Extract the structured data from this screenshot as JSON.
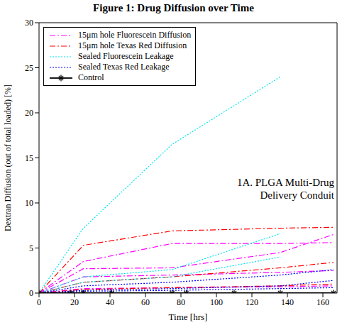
{
  "chart_data": {
    "type": "line",
    "title": "Figure 1: Drug Diffusion over Time",
    "x_label": "Time [hrs]",
    "y_label": "Dextran Diffusion (out of total loaded) [%]",
    "annotation": "1A. PLGA Multi-Drug Delivery Conduit",
    "xlim": [
      0,
      168
    ],
    "xticks": [
      0,
      20,
      40,
      60,
      80,
      100,
      120,
      140,
      160
    ],
    "ylim": [
      0,
      30
    ],
    "yticks": [
      0,
      5,
      10,
      15,
      20,
      25,
      30
    ],
    "grid": false,
    "legend": "upper left",
    "series": [
      {
        "name": "15μm hole Fluorescein Diffusion",
        "color": "#ff00ff",
        "line_style": "dashdot",
        "marker": "none",
        "replicates": [
          {
            "x": [
              0,
              25,
              75,
              136,
              166
            ],
            "values": [
              0,
              3.5,
              5.5,
              5.5,
              5.6
            ]
          },
          {
            "x": [
              0,
              25,
              75,
              136,
              166
            ],
            "values": [
              0,
              2.7,
              2.8,
              4.5,
              6.5
            ]
          },
          {
            "x": [
              0,
              25,
              75,
              136,
              166
            ],
            "values": [
              0,
              1.8,
              2.0,
              2.3,
              2.5
            ]
          },
          {
            "x": [
              0,
              25,
              75,
              136,
              166
            ],
            "values": [
              0,
              0.5,
              0.6,
              0.7,
              0.8
            ]
          }
        ]
      },
      {
        "name": "15μm hole Texas Red Diffusion",
        "color": "#ff0000",
        "line_style": "dashdot",
        "marker": "none",
        "replicates": [
          {
            "x": [
              0,
              25,
              75,
              136,
              166
            ],
            "values": [
              0,
              5.3,
              6.9,
              7.2,
              7.3
            ]
          },
          {
            "x": [
              0,
              25,
              75,
              136,
              166
            ],
            "values": [
              0,
              1.2,
              1.8,
              2.8,
              3.4
            ]
          },
          {
            "x": [
              0,
              25,
              75,
              136,
              166
            ],
            "values": [
              0,
              0.4,
              0.6,
              0.8,
              1.0
            ]
          }
        ]
      },
      {
        "name": "Sealed Fluorescein Leakage",
        "color": "#00e5ee",
        "line_style": "dotted",
        "marker": "none",
        "replicates": [
          {
            "x": [
              0,
              25,
              75,
              136
            ],
            "values": [
              0,
              7.2,
              16.5,
              24
            ]
          },
          {
            "x": [
              0,
              25,
              75,
              136
            ],
            "values": [
              0,
              1.8,
              2.6,
              6.6
            ]
          },
          {
            "x": [
              0,
              25,
              75,
              136
            ],
            "values": [
              0,
              1.2,
              1.8,
              4.0
            ]
          }
        ]
      },
      {
        "name": "Sealed Texas Red Leakage",
        "color": "#0000ff",
        "line_style": "dotted",
        "marker": "none",
        "replicates": [
          {
            "x": [
              0,
              25,
              75,
              136,
              166
            ],
            "values": [
              0,
              0.8,
              1.2,
              2.0,
              2.6
            ]
          },
          {
            "x": [
              0,
              25,
              75,
              136,
              166
            ],
            "values": [
              0,
              0.3,
              0.5,
              0.8,
              1.4
            ]
          },
          {
            "x": [
              0,
              25,
              75,
              136,
              166
            ],
            "values": [
              0,
              0.2,
              0.3,
              0.5,
              0.6
            ]
          }
        ]
      },
      {
        "name": "Control",
        "color": "#000000",
        "line_style": "solid",
        "marker": "star",
        "replicates": [
          {
            "x": [
              0,
              18,
              25,
              41,
              75,
              83,
              110,
              136,
              166
            ],
            "values": [
              0,
              0,
              0,
              0,
              0,
              0,
              0,
              0,
              0
            ]
          }
        ]
      }
    ]
  }
}
